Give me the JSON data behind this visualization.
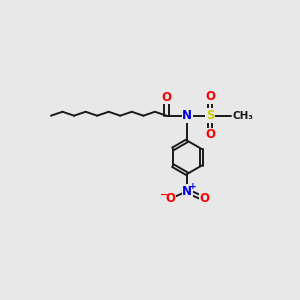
{
  "bg_color": "#e8e8e8",
  "bond_color": "#1a1a1a",
  "bond_width": 1.4,
  "atom_colors": {
    "O": "#ff0000",
    "N": "#0000ee",
    "S": "#cccc00",
    "C": "#1a1a1a"
  },
  "font_size_atom": 8.5,
  "font_size_ch3": 7.5,
  "font_size_charge": 6.5
}
